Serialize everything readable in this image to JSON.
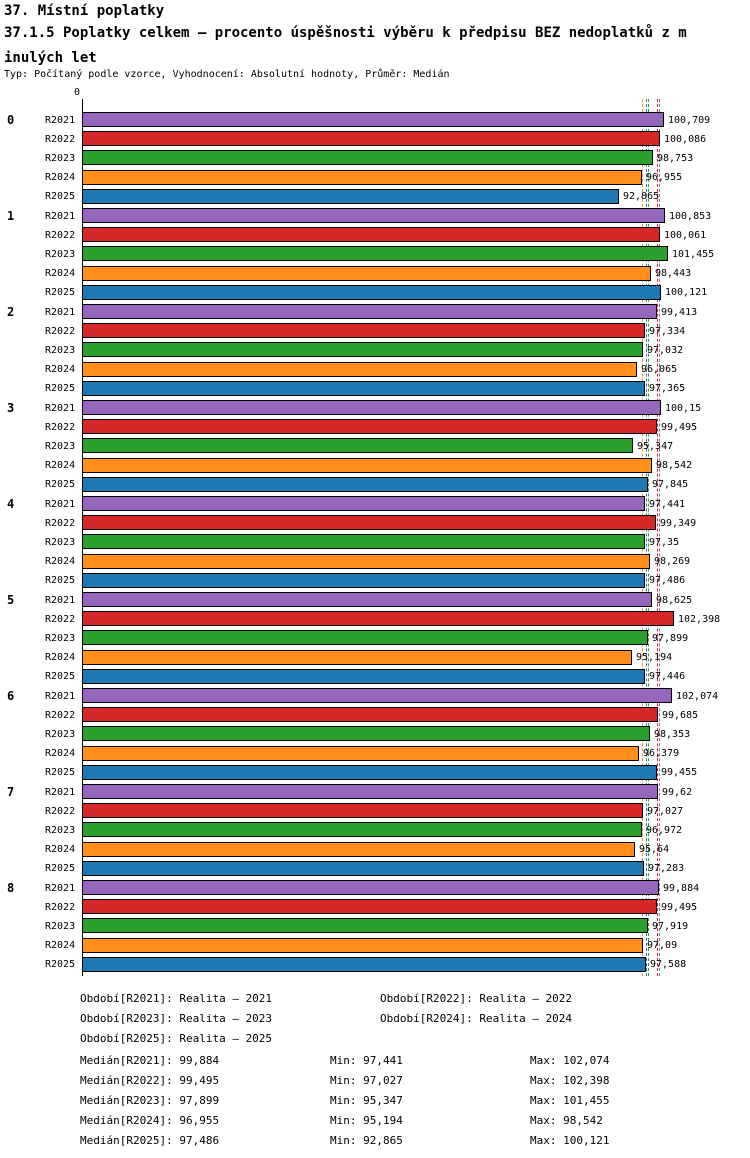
{
  "header": {
    "title": "37. Místní poplatky",
    "subtitle_line1": "37.1.5 Poplatky celkem – procento úspěšnosti výběru k předpisu BEZ nedoplatků z m",
    "subtitle_line2": "inulých let",
    "meta": "Typ: Počítaný podle vzorce, Vyhodnocení: Absolutní hodnoty, Průměr: Medián"
  },
  "chart_data": {
    "type": "bar",
    "orientation": "horizontal",
    "title": "37.1.5 Poplatky celkem – procento úspěšnosti výběru k předpisu BEZ nedoplatků z minulých let",
    "axis_origin_label": "0",
    "value_axis": {
      "min": 0,
      "approx_max": 103.5
    },
    "grid": false,
    "groups": [
      "0",
      "1",
      "2",
      "3",
      "4",
      "5",
      "6",
      "7",
      "8"
    ],
    "series": [
      {
        "name": "R2021",
        "color": "#9467bd",
        "values": [
          "100,709",
          "100,853",
          "99,413",
          "100,15",
          "97,441",
          "98,625",
          "102,074",
          "99,62",
          "99,884"
        ]
      },
      {
        "name": "R2022",
        "color": "#d62728",
        "values": [
          "100,086",
          "100,061",
          "97,334",
          "99,495",
          "99,349",
          "102,398",
          "99,685",
          "97,027",
          "99,495"
        ]
      },
      {
        "name": "R2023",
        "color": "#2ca02c",
        "values": [
          "98,753",
          "101,455",
          "97,032",
          "95,347",
          "97,35",
          "97,899",
          "98,353",
          "96,972",
          "97,919"
        ]
      },
      {
        "name": "R2024",
        "color": "#ff8f1a",
        "values": [
          "96,955",
          "98,443",
          "96,065",
          "98,542",
          "98,269",
          "95,194",
          "96,379",
          "95,64",
          "97,09"
        ]
      },
      {
        "name": "R2025",
        "color": "#1f77b4",
        "values": [
          "92,865",
          "100,121",
          "97,365",
          "97,845",
          "97,486",
          "97,446",
          "99,455",
          "97,283",
          "97,588"
        ]
      }
    ],
    "medians": [
      "99,884",
      "99,495",
      "97,899",
      "96,955",
      "97,486"
    ]
  },
  "legend": {
    "items": [
      "Období[R2021]: Realita – 2021",
      "Období[R2022]: Realita – 2022",
      "Období[R2023]: Realita – 2023",
      "Období[R2024]: Realita – 2024",
      "Období[R2025]: Realita – 2025"
    ]
  },
  "stats": {
    "rows": [
      {
        "median": "Medián[R2021]: 99,884",
        "min": "Min: 97,441",
        "max": "Max: 102,074"
      },
      {
        "median": "Medián[R2022]: 99,495",
        "min": "Min: 97,027",
        "max": "Max: 102,398"
      },
      {
        "median": "Medián[R2023]: 97,899",
        "min": "Min: 95,347",
        "max": "Max: 101,455"
      },
      {
        "median": "Medián[R2024]: 96,955",
        "min": "Min: 95,194",
        "max": "Max: 98,542"
      },
      {
        "median": "Medián[R2025]: 97,486",
        "min": "Min: 92,865",
        "max": "Max: 100,121"
      }
    ]
  }
}
